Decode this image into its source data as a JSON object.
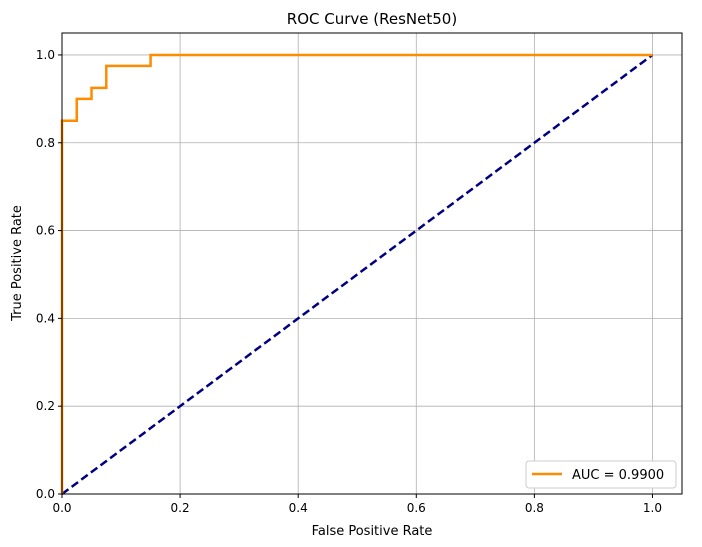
{
  "chart_data": {
    "type": "line",
    "title": "ROC Curve (ResNet50)",
    "xlabel": "False Positive Rate",
    "ylabel": "True Positive Rate",
    "xlim": [
      0.0,
      1.05
    ],
    "ylim": [
      0.0,
      1.05
    ],
    "x_ticks": [
      "0.0",
      "0.2",
      "0.4",
      "0.6",
      "0.8",
      "1.0"
    ],
    "y_ticks": [
      "0.0",
      "0.2",
      "0.4",
      "0.6",
      "0.8",
      "1.0"
    ],
    "grid": true,
    "legend_position": "lower-right",
    "series": [
      {
        "name": "AUC = 0.9900",
        "color": "#ff8c00",
        "style": "solid",
        "x": [
          0.0,
          0.0,
          0.025,
          0.025,
          0.05,
          0.05,
          0.075,
          0.075,
          0.15,
          0.15,
          1.0
        ],
        "y": [
          0.0,
          0.85,
          0.85,
          0.9,
          0.9,
          0.925,
          0.925,
          0.975,
          0.975,
          1.0,
          1.0
        ]
      },
      {
        "color": "#000080",
        "style": "dashed",
        "x": [
          0.0,
          1.0
        ],
        "y": [
          0.0,
          1.0
        ]
      }
    ]
  }
}
